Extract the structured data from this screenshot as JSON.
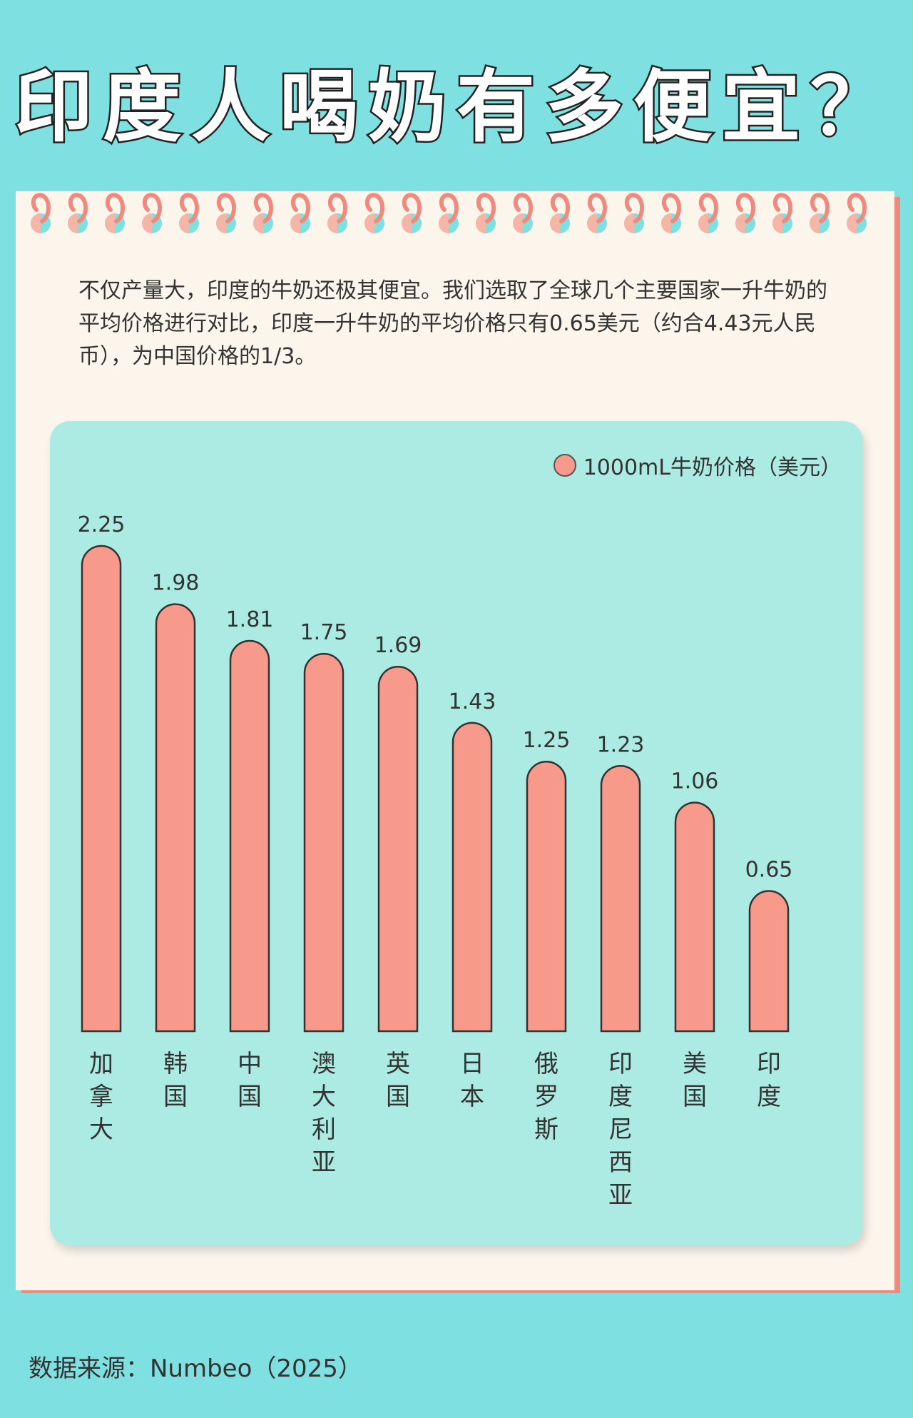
{
  "header": {
    "title": "印度人喝奶有多便宜？"
  },
  "description": "不仅产量大，印度的牛奶还极其便宜。我们选取了全球几个主要国家一升牛奶的平均价格进行对比，印度一升牛奶的平均价格只有0.65美元（约合4.43元人民币），为中国价格的1/3。",
  "legend": {
    "label": "1000mL牛奶价格（美元）",
    "color": "#f79a8c"
  },
  "source": "数据来源：Numbeo（2025）",
  "colors": {
    "background": "#7ee0e0",
    "card": "#acebe3",
    "bar": "#f79a8c",
    "paper": "#fbf5ec",
    "accent": "#f08a7e"
  },
  "chart_data": {
    "type": "bar",
    "title": "",
    "xlabel": "",
    "ylabel": "",
    "categories": [
      "加拿大",
      "韩国",
      "中国",
      "澳大利亚",
      "英国",
      "日本",
      "俄罗斯",
      "印度尼西亚",
      "美国",
      "印度"
    ],
    "series": [
      {
        "name": "1000mL牛奶价格（美元）",
        "values": [
          2.25,
          1.98,
          1.81,
          1.75,
          1.69,
          1.43,
          1.25,
          1.23,
          1.06,
          0.65
        ]
      }
    ],
    "value_labels": [
      "2.25",
      "1.98",
      "1.81",
      "1.75",
      "1.69",
      "1.43",
      "1.25",
      "1.23",
      "1.06",
      "0.65"
    ],
    "ylim": [
      0,
      2.25
    ],
    "grid": false,
    "legend_position": "top-right"
  }
}
